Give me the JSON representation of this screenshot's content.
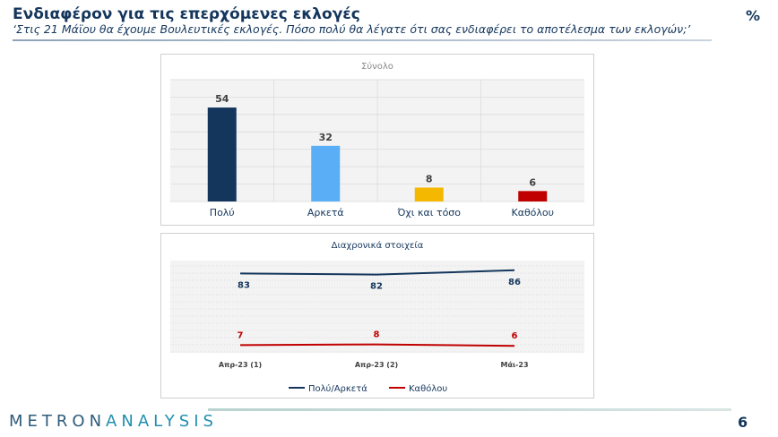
{
  "header": {
    "title": "Ενδιαφέρον για τις επερχόμενες εκλογές",
    "subtitle": "‘Στις 21 Μάϊου θα έχουμε Βουλευτικές εκλογές. Πόσο πολύ θα λέγατε ότι σας ενδιαφέρει το αποτέλεσμα των εκλογών;’",
    "unit": "%"
  },
  "footer": {
    "logo_a": "METRON",
    "logo_b": "ANALYSIS",
    "page": "6"
  },
  "chart_data": [
    {
      "type": "bar",
      "title": "Σύνολο",
      "categories": [
        "Πολύ",
        "Αρκετά",
        "Όχι και τόσο",
        "Καθόλου"
      ],
      "values": [
        54,
        32,
        8,
        6
      ],
      "colors": [
        "#14365c",
        "#5aaef5",
        "#f5b800",
        "#c00000"
      ],
      "ylim": [
        0,
        70
      ],
      "grid": true
    },
    {
      "type": "line",
      "title": "Διαχρονικά στοιχεία",
      "categories": [
        "Απρ-23 (1)",
        "Απρ-23 (2)",
        "Μάι-23"
      ],
      "series": [
        {
          "name": "Πολύ/Αρκετά",
          "values": [
            83,
            82,
            86
          ],
          "color": "#14365c"
        },
        {
          "name": "Καθόλου",
          "values": [
            7,
            8,
            6
          ],
          "color": "#c00000"
        }
      ],
      "legend": "bottom"
    }
  ]
}
